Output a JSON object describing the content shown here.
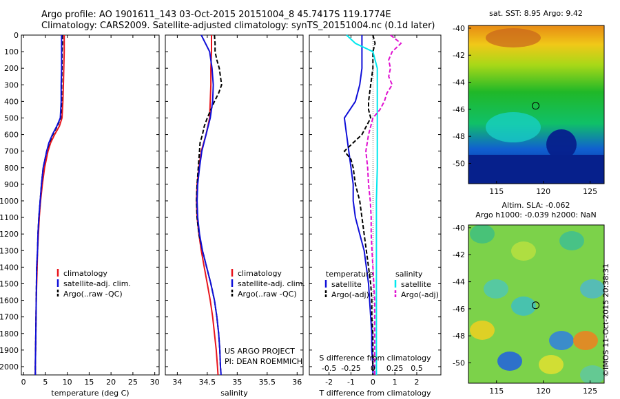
{
  "title": {
    "line1": "Argo profile: AO 1901611_143 03-Oct-2015 20151004_8 45.7417S 119.1774E",
    "line2": "Climatology: CARS2009. Satellite-adjusted climatology: synTS_20151004.nc (0.1d later)"
  },
  "depth_ticks": [
    "0",
    "100",
    "200",
    "300",
    "400",
    "500",
    "600",
    "700",
    "800",
    "900",
    "1000",
    "1100",
    "1200",
    "1300",
    "1400",
    "1500",
    "1600",
    "1700",
    "1800",
    "1900",
    "2000"
  ],
  "colors": {
    "climatology": "#e8141c",
    "satellite": "#1010d8",
    "argo": "#000000",
    "satellite_s": "#00e8ee",
    "argo_s": "#e010d0"
  },
  "chart_data": [
    {
      "type": "line",
      "name": "temperature",
      "xlabel": "temperature (deg C)",
      "xlim": [
        -0.5,
        31
      ],
      "ylim": [
        0,
        2050
      ],
      "x_ticks": [
        "0",
        "5",
        "10",
        "15",
        "20",
        "25",
        "30"
      ],
      "legend": [
        "climatology",
        "satellite-adj. clim.",
        "Argo(..raw -QC)"
      ],
      "series": [
        {
          "name": "climatology",
          "depth": [
            0,
            50,
            100,
            200,
            300,
            400,
            500,
            550,
            600,
            650,
            700,
            800,
            900,
            1000,
            1100,
            1200,
            1300,
            1400,
            1600,
            1800,
            2000,
            2050
          ],
          "values": [
            9.3,
            9.3,
            9.3,
            9.2,
            9.1,
            9.0,
            8.8,
            8.2,
            7.1,
            6.2,
            5.6,
            4.8,
            4.3,
            3.9,
            3.6,
            3.4,
            3.2,
            3.1,
            2.9,
            2.8,
            2.7,
            2.7
          ]
        },
        {
          "name": "satellite-adj. clim.",
          "depth": [
            0,
            50,
            100,
            200,
            300,
            400,
            500,
            550,
            600,
            650,
            700,
            800,
            900,
            1000,
            1100,
            1200,
            1300,
            1400,
            1600,
            1800,
            2000,
            2050
          ],
          "values": [
            8.7,
            8.7,
            8.7,
            8.7,
            8.6,
            8.6,
            8.4,
            7.6,
            6.6,
            5.8,
            5.3,
            4.5,
            4.1,
            3.8,
            3.5,
            3.3,
            3.2,
            3.0,
            2.9,
            2.8,
            2.7,
            2.7
          ]
        },
        {
          "name": "Argo(..raw -QC)",
          "depth": [
            0,
            50,
            100,
            200,
            300,
            400,
            500,
            550,
            600,
            650,
            700,
            800,
            900,
            1000,
            1100,
            1200,
            1300,
            1400,
            1600,
            1800,
            2000,
            2050
          ],
          "values": [
            8.9,
            8.9,
            8.8,
            8.8,
            8.7,
            8.7,
            8.5,
            7.7,
            6.7,
            5.9,
            5.3,
            4.5,
            4.1,
            3.8,
            3.5,
            3.3,
            3.2,
            3.0,
            2.9,
            2.8,
            2.7,
            2.7
          ]
        }
      ]
    },
    {
      "type": "line",
      "name": "salinity",
      "xlabel": "salinity",
      "xlim": [
        33.8,
        36.1
      ],
      "ylim": [
        0,
        2050
      ],
      "x_ticks": [
        "34",
        "34.5",
        "35",
        "35.5",
        "36"
      ],
      "legend": [
        "climatology",
        "satellite-adj. clim.",
        "Argo(..raw -QC)"
      ],
      "annotation": [
        "US ARGO PROJECT",
        "PI: DEAN ROEMMICH"
      ],
      "series": [
        {
          "name": "climatology",
          "depth": [
            0,
            100,
            200,
            300,
            400,
            500,
            600,
            700,
            800,
            900,
            1000,
            1100,
            1200,
            1300,
            1400,
            1500,
            1600,
            1700,
            1800,
            1900,
            2000,
            2050
          ],
          "values": [
            34.57,
            34.57,
            34.56,
            34.56,
            34.55,
            34.54,
            34.48,
            34.4,
            34.36,
            34.33,
            34.32,
            34.33,
            34.36,
            34.4,
            34.45,
            34.5,
            34.55,
            34.59,
            34.62,
            34.65,
            34.67,
            34.68
          ]
        },
        {
          "name": "satellite-adj. clim.",
          "depth": [
            0,
            100,
            200,
            300,
            400,
            500,
            600,
            700,
            800,
            900,
            1000,
            1100,
            1200,
            1300,
            1400,
            1500,
            1600,
            1700,
            1800,
            1900,
            2000,
            2050
          ],
          "values": [
            34.4,
            34.54,
            34.58,
            34.6,
            34.59,
            34.55,
            34.48,
            34.41,
            34.37,
            34.34,
            34.33,
            34.34,
            34.37,
            34.42,
            34.49,
            34.56,
            34.62,
            34.66,
            34.69,
            34.71,
            34.72,
            34.73
          ]
        },
        {
          "name": "Argo(..raw -QC)",
          "depth": [
            0,
            50,
            100,
            150,
            200,
            250,
            300,
            350,
            400,
            450,
            500,
            550,
            600,
            650,
            700,
            800,
            900,
            1000,
            1100,
            1200,
            1300,
            1400,
            1500,
            1600,
            1700,
            1800,
            1900,
            2000,
            2050
          ],
          "values": [
            34.62,
            34.63,
            34.63,
            34.66,
            34.7,
            34.72,
            34.74,
            34.69,
            34.62,
            34.56,
            34.5,
            34.45,
            34.42,
            34.38,
            34.37,
            34.35,
            34.33,
            34.32,
            34.33,
            34.36,
            34.42,
            34.49,
            34.56,
            34.62,
            34.66,
            34.69,
            34.71,
            34.72,
            34.73
          ]
        }
      ]
    },
    {
      "type": "line",
      "name": "difference",
      "xlabel": "T difference from climatology",
      "x2label": "S difference from climatology",
      "xlim": [
        -2.9,
        3.1
      ],
      "ylim": [
        0,
        2050
      ],
      "x_ticks": [
        "-2",
        "-1",
        "0",
        "1",
        "2"
      ],
      "x2_ticks": [
        "-0.5",
        "-0.25",
        "0",
        "0.25",
        "0.5"
      ],
      "legend_temperature": [
        "temperature",
        "satellite",
        "Argo(-adj)"
      ],
      "legend_salinity": [
        "salinity",
        "satellite",
        "Argo(-adj)"
      ],
      "series": [
        {
          "name": "temperature satellite",
          "depth": [
            0,
            100,
            200,
            300,
            400,
            500,
            600,
            700,
            800,
            900,
            1000,
            1100,
            1200,
            1300,
            1400,
            1500,
            1600,
            1700,
            1800,
            1900,
            2000,
            2050
          ],
          "values": [
            -0.5,
            -0.5,
            -0.5,
            -0.6,
            -0.8,
            -1.3,
            -1.2,
            -1.1,
            -1.0,
            -0.9,
            -0.9,
            -0.8,
            -0.6,
            -0.4,
            -0.3,
            -0.2,
            -0.15,
            -0.1,
            -0.05,
            -0.05,
            0.0,
            0.0
          ]
        },
        {
          "name": "temperature Argo(-adj)",
          "depth": [
            0,
            50,
            100,
            200,
            300,
            400,
            450,
            500,
            600,
            700,
            750,
            800,
            900,
            1000,
            1100,
            1200,
            1300,
            1400,
            1500,
            1600,
            1700,
            1800,
            1900,
            2000,
            2050
          ],
          "values": [
            0.0,
            0.1,
            0.0,
            0.0,
            -0.1,
            -0.2,
            -0.2,
            -0.1,
            -0.5,
            -1.3,
            -1.0,
            -0.9,
            -0.8,
            -0.6,
            -0.5,
            -0.4,
            -0.3,
            -0.2,
            -0.1,
            -0.05,
            -0.05,
            0.0,
            0.0,
            0.0,
            0.0
          ]
        },
        {
          "name": "salinity satellite",
          "depth": [
            0,
            50,
            100,
            200,
            300,
            400,
            500,
            600,
            800,
            1000,
            1200,
            1400,
            1600,
            1800,
            2000,
            2050
          ],
          "values": [
            -0.3,
            -0.2,
            0.0,
            0.05,
            0.05,
            0.05,
            0.05,
            0.05,
            0.05,
            0.04,
            0.04,
            0.04,
            0.04,
            0.04,
            0.04,
            0.04
          ]
        },
        {
          "name": "salinity Argo(-adj)",
          "depth": [
            0,
            50,
            100,
            150,
            200,
            250,
            300,
            350,
            400,
            450,
            500,
            600,
            700,
            800,
            900,
            1000,
            1100,
            1200,
            1300,
            1400,
            1500,
            1600,
            1800,
            2000,
            2050
          ],
          "values": [
            0.2,
            0.32,
            0.22,
            0.18,
            0.2,
            0.18,
            0.22,
            0.16,
            0.13,
            0.08,
            0.0,
            -0.05,
            -0.08,
            -0.06,
            -0.05,
            -0.03,
            -0.02,
            -0.02,
            -0.01,
            0.0,
            0.01,
            0.02,
            0.02,
            0.02,
            0.02
          ]
        }
      ]
    },
    {
      "type": "heatmap",
      "name": "sst-map",
      "title": "sat. SST: 8.95 Argo: 9.42",
      "xlim": [
        112,
        126.5
      ],
      "ylim": [
        -51.5,
        -39.8
      ],
      "x_ticks": [
        "115",
        "120",
        "125"
      ],
      "y_ticks": [
        "-40",
        "-42",
        "-44",
        "-46",
        "-48",
        "-50"
      ],
      "marker": {
        "lon": 119.18,
        "lat": -45.74
      }
    },
    {
      "type": "heatmap",
      "name": "sla-map",
      "title": "Altim. SLA: -0.062",
      "subtitle": "Argo h1000: -0.039 h2000: NaN",
      "xlim": [
        112,
        126.5
      ],
      "ylim": [
        -51.5,
        -39.8
      ],
      "x_ticks": [
        "115",
        "120",
        "125"
      ],
      "y_ticks": [
        "-40",
        "-42",
        "-44",
        "-46",
        "-48",
        "-50"
      ],
      "marker": {
        "lon": 119.18,
        "lat": -45.74
      }
    }
  ],
  "timestamp": "©IMOS 11-Oct-2015 20:38:31"
}
